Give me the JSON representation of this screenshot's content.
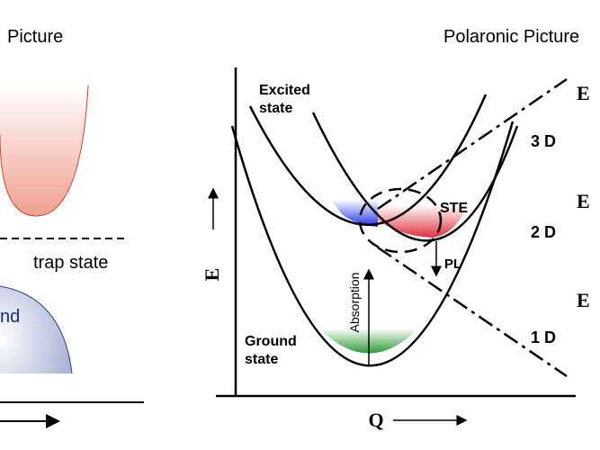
{
  "panels": {
    "left_title": "Picture",
    "right_title": "Polaronic Picture"
  },
  "left": {
    "trap_label": "trap state",
    "band_label": "nd"
  },
  "right": {
    "excited_label": [
      "Excited",
      "state"
    ],
    "ground_label": [
      "Ground",
      "state"
    ],
    "ste_label": "STE",
    "pl_label": "PL",
    "absorption_label": "Absorption",
    "dimension_labels": [
      "3 D",
      "2 D",
      "1 D"
    ],
    "edge_labels": [
      "E",
      "E",
      "E"
    ],
    "y_axis_label": "E",
    "x_axis_label": "Q"
  }
}
